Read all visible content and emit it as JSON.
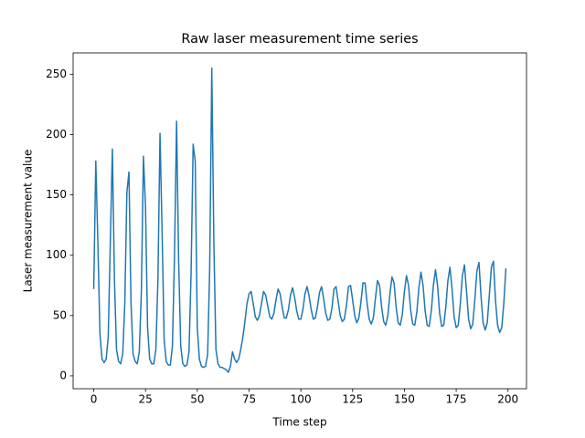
{
  "chart_data": {
    "type": "line",
    "title": "Raw laser measurement time series",
    "xlabel": "Time step",
    "ylabel": "Laser measurement value",
    "color": "#1f77b4",
    "x": [
      0,
      1,
      2,
      3,
      4,
      5,
      6,
      7,
      8,
      9,
      10,
      11,
      12,
      13,
      14,
      15,
      16,
      17,
      18,
      19,
      20,
      21,
      22,
      23,
      24,
      25,
      26,
      27,
      28,
      29,
      30,
      31,
      32,
      33,
      34,
      35,
      36,
      37,
      38,
      39,
      40,
      41,
      42,
      43,
      44,
      45,
      46,
      47,
      48,
      49,
      50,
      51,
      52,
      53,
      54,
      55,
      56,
      57,
      58,
      59,
      60,
      61,
      62,
      63,
      64,
      65,
      66,
      67,
      68,
      69,
      70,
      71,
      72,
      73,
      74,
      75,
      76,
      77,
      78,
      79,
      80,
      81,
      82,
      83,
      84,
      85,
      86,
      87,
      88,
      89,
      90,
      91,
      92,
      93,
      94,
      95,
      96,
      97,
      98,
      99,
      100,
      101,
      102,
      103,
      104,
      105,
      106,
      107,
      108,
      109,
      110,
      111,
      112,
      113,
      114,
      115,
      116,
      117,
      118,
      119,
      120,
      121,
      122,
      123,
      124,
      125,
      126,
      127,
      128,
      129,
      130,
      131,
      132,
      133,
      134,
      135,
      136,
      137,
      138,
      139,
      140,
      141,
      142,
      143,
      144,
      145,
      146,
      147,
      148,
      149,
      150,
      151,
      152,
      153,
      154,
      155,
      156,
      157,
      158,
      159,
      160,
      161,
      162,
      163,
      164,
      165,
      166,
      167,
      168,
      169,
      170,
      171,
      172,
      173,
      174,
      175,
      176,
      177,
      178,
      179,
      180,
      181,
      182,
      183,
      184,
      185,
      186,
      187,
      188,
      189,
      190,
      191,
      192,
      193,
      194,
      195,
      196,
      197,
      198,
      199
    ],
    "values": [
      72,
      178,
      110,
      35,
      14,
      11,
      14,
      32,
      110,
      188,
      80,
      22,
      12,
      10,
      18,
      60,
      152,
      169,
      60,
      18,
      12,
      10,
      20,
      70,
      182,
      140,
      40,
      14,
      10,
      10,
      22,
      80,
      201,
      120,
      30,
      12,
      9,
      9,
      25,
      100,
      211,
      95,
      25,
      10,
      8,
      9,
      20,
      85,
      192,
      178,
      40,
      14,
      8,
      7,
      8,
      18,
      90,
      255,
      110,
      22,
      10,
      7,
      7,
      6,
      5,
      3,
      8,
      20,
      14,
      11,
      14,
      22,
      32,
      45,
      60,
      68,
      70,
      60,
      49,
      46,
      50,
      60,
      70,
      67,
      58,
      49,
      47,
      52,
      63,
      72,
      68,
      57,
      48,
      48,
      55,
      67,
      73,
      65,
      54,
      47,
      47,
      55,
      68,
      74,
      66,
      55,
      47,
      48,
      57,
      69,
      74,
      64,
      52,
      46,
      47,
      56,
      72,
      74,
      62,
      50,
      45,
      47,
      58,
      74,
      75,
      63,
      50,
      44,
      48,
      61,
      77,
      77,
      60,
      47,
      43,
      48,
      64,
      79,
      75,
      57,
      45,
      42,
      50,
      68,
      82,
      77,
      57,
      44,
      42,
      51,
      70,
      83,
      75,
      55,
      43,
      42,
      53,
      73,
      86,
      75,
      54,
      42,
      41,
      54,
      75,
      88,
      75,
      52,
      41,
      42,
      57,
      79,
      90,
      72,
      49,
      40,
      42,
      60,
      83,
      92,
      70,
      47,
      39,
      43,
      63,
      87,
      94,
      66,
      44,
      38,
      44,
      67,
      90,
      95,
      62,
      42,
      36,
      40,
      60,
      89
    ],
    "xlim": [
      -9.95,
      208.95
    ],
    "ylim": [
      -10.65,
      267.65
    ],
    "xticks": [
      0,
      25,
      50,
      75,
      100,
      125,
      150,
      175,
      200
    ],
    "yticks": [
      0,
      50,
      100,
      150,
      200,
      250
    ]
  }
}
